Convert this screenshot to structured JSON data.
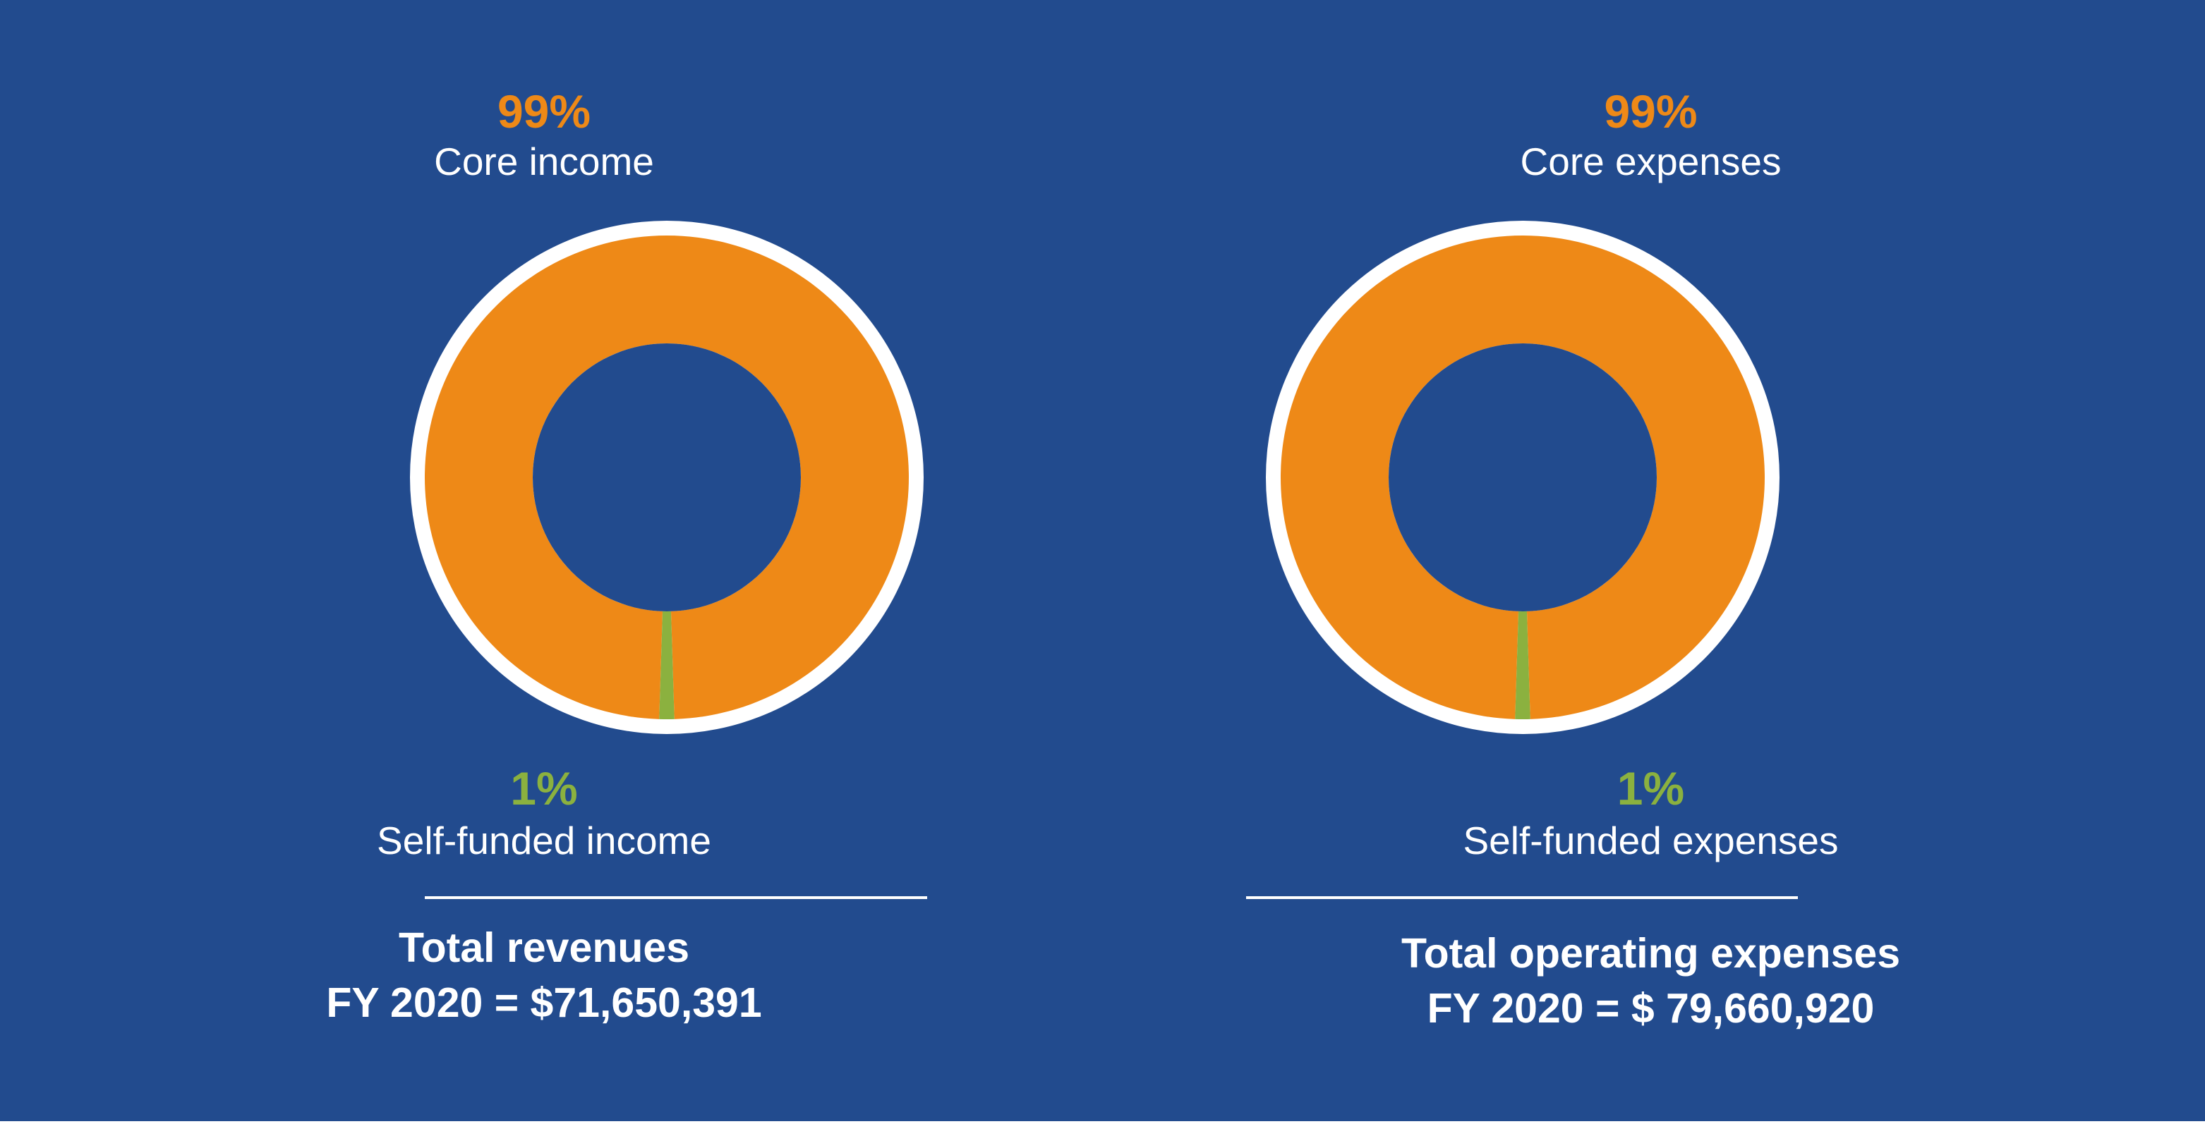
{
  "colors": {
    "background": "#224b8e",
    "core": "#ee8917",
    "self_funded": "#8bb13f",
    "ring": "#ffffff",
    "text": "#ffffff"
  },
  "left": {
    "core_pct": "99%",
    "core_label": "Core income",
    "self_pct": "1%",
    "self_label": "Self-funded income",
    "total_line1": "Total revenues",
    "total_line2": "FY 2020 =  $71,650,391"
  },
  "right": {
    "core_pct": "99%",
    "core_label": "Core expenses",
    "self_pct": "1%",
    "self_label": "Self-funded expenses",
    "total_line1": "Total operating expenses",
    "total_line2": "FY 2020 = $ 79,660,920"
  },
  "chart_data": [
    {
      "type": "pie",
      "categories": [
        "Core income",
        "Self-funded income"
      ],
      "values": [
        99,
        1
      ]
    },
    {
      "type": "pie",
      "categories": [
        "Core expenses",
        "Self-funded expenses"
      ],
      "values": [
        99,
        1
      ]
    }
  ]
}
